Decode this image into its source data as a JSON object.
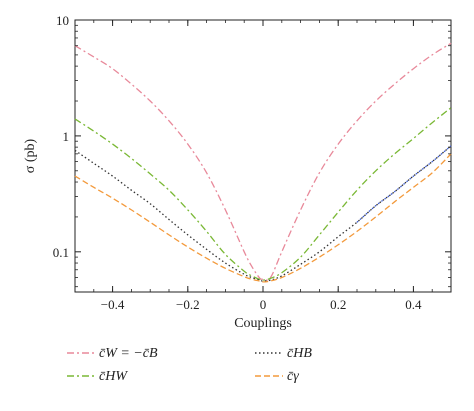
{
  "chart_data": {
    "type": "line",
    "xlabel": "Couplings",
    "ylabel": "σ (pb)",
    "xlim": [
      -0.5,
      0.5
    ],
    "ylim": [
      0.045,
      10
    ],
    "yscale": "log",
    "grid": false,
    "legend_position": "bottom",
    "x_ticks": [
      -0.4,
      -0.2,
      0,
      0.2,
      0.4
    ],
    "x_tick_labels": [
      "−0.4",
      "−0.2",
      "0",
      "0.2",
      "0.4"
    ],
    "y_ticks": [
      0.1,
      1,
      10
    ],
    "y_tick_labels": [
      "0.1",
      "1",
      "10"
    ],
    "series": [
      {
        "name": "c̄W = −c̄B",
        "color": "#e8899a",
        "dash": "dashdot",
        "x": [
          -0.5,
          -0.45,
          -0.4,
          -0.35,
          -0.3,
          -0.25,
          -0.2,
          -0.15,
          -0.1,
          -0.05,
          -0.03,
          -0.01,
          0.0,
          0.02,
          0.05,
          0.1,
          0.15,
          0.2,
          0.25,
          0.3,
          0.35,
          0.4,
          0.45,
          0.5
        ],
        "y": [
          6.0,
          4.8,
          3.8,
          2.8,
          2.0,
          1.35,
          0.85,
          0.48,
          0.23,
          0.1,
          0.075,
          0.06,
          0.058,
          0.06,
          0.1,
          0.23,
          0.48,
          0.85,
          1.35,
          2.0,
          2.8,
          3.8,
          5.0,
          6.3
        ]
      },
      {
        "name": "c̄HW",
        "color": "#7ab835",
        "dash": "dashdot",
        "x": [
          -0.5,
          -0.45,
          -0.4,
          -0.35,
          -0.3,
          -0.25,
          -0.2,
          -0.15,
          -0.1,
          -0.05,
          -0.03,
          -0.01,
          0.0,
          0.02,
          0.05,
          0.1,
          0.15,
          0.2,
          0.25,
          0.3,
          0.35,
          0.4,
          0.45,
          0.5
        ],
        "y": [
          1.4,
          1.1,
          0.85,
          0.64,
          0.47,
          0.34,
          0.23,
          0.15,
          0.095,
          0.068,
          0.062,
          0.058,
          0.057,
          0.059,
          0.066,
          0.09,
          0.14,
          0.22,
          0.34,
          0.5,
          0.7,
          0.95,
          1.3,
          1.75
        ]
      },
      {
        "name": "c̄HB",
        "color": "#333333",
        "dash": "dotted",
        "x": [
          -0.5,
          -0.45,
          -0.4,
          -0.35,
          -0.3,
          -0.25,
          -0.2,
          -0.15,
          -0.1,
          -0.05,
          -0.03,
          -0.01,
          0.0,
          0.02,
          0.05,
          0.1,
          0.15,
          0.2,
          0.25,
          0.3,
          0.35,
          0.4,
          0.45,
          0.5
        ],
        "y": [
          0.75,
          0.58,
          0.45,
          0.34,
          0.26,
          0.19,
          0.14,
          0.105,
          0.08,
          0.064,
          0.06,
          0.057,
          0.056,
          0.057,
          0.062,
          0.078,
          0.1,
          0.135,
          0.18,
          0.25,
          0.33,
          0.45,
          0.6,
          0.82
        ]
      },
      {
        "name": "c̄γ",
        "color": "#f39a3c",
        "dash": "dashed",
        "x": [
          -0.5,
          -0.45,
          -0.4,
          -0.35,
          -0.3,
          -0.25,
          -0.2,
          -0.15,
          -0.1,
          -0.05,
          -0.03,
          -0.01,
          0.0,
          0.02,
          0.05,
          0.1,
          0.15,
          0.2,
          0.25,
          0.3,
          0.35,
          0.4,
          0.45,
          0.5
        ],
        "y": [
          0.45,
          0.36,
          0.29,
          0.23,
          0.18,
          0.14,
          0.11,
          0.088,
          0.072,
          0.061,
          0.058,
          0.056,
          0.055,
          0.056,
          0.06,
          0.072,
          0.09,
          0.115,
          0.15,
          0.2,
          0.27,
          0.36,
          0.48,
          0.7
        ]
      }
    ],
    "extra_series": [
      {
        "name": "",
        "color": "#3b5bd6",
        "dash": "dotted",
        "x": [
          0.25,
          0.3,
          0.35,
          0.4,
          0.45,
          0.5
        ],
        "y": [
          0.18,
          0.25,
          0.33,
          0.45,
          0.6,
          0.82
        ]
      }
    ],
    "legend": [
      {
        "label": "c̄W = −c̄B",
        "color": "#e8899a",
        "dash": "dashdot"
      },
      {
        "label": "c̄HB",
        "color": "#333333",
        "dash": "dotted"
      },
      {
        "label": "c̄HW",
        "color": "#7ab835",
        "dash": "dashdot"
      },
      {
        "label": "c̄γ",
        "color": "#f39a3c",
        "dash": "dashed"
      }
    ]
  }
}
